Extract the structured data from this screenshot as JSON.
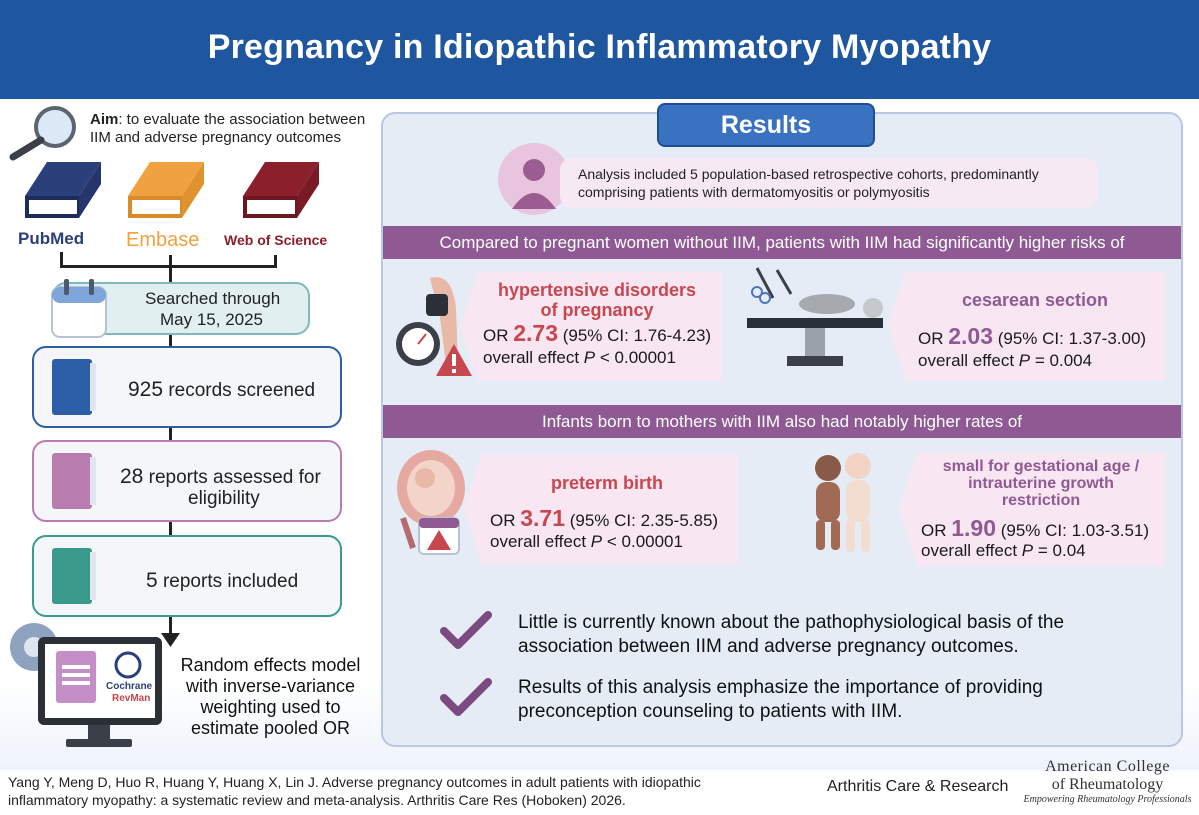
{
  "header": {
    "title": "Pregnancy in Idiopathic Inflammatory Myopathy"
  },
  "aim": {
    "label": "Aim",
    "text": ": to evaluate the association between IIM and adverse pregnancy outcomes"
  },
  "databases": [
    {
      "name": "PubMed",
      "color": "#2b3f7a"
    },
    {
      "name": "Embase",
      "color": "#f0a140"
    },
    {
      "name": "Web of Science",
      "color": "#8b1f2b"
    }
  ],
  "flow": {
    "search_line1": "Searched through",
    "search_line2": "May 15, 2025",
    "screened_count": "925",
    "screened_label": " records screened",
    "assessed_count": "28",
    "assessed_label": " reports assessed for",
    "assessed_label2": "eligibility",
    "included_count": "5",
    "included_label": " reports included",
    "model_line1": "Random effects model",
    "model_line2": "with inverse-variance",
    "model_line3": "weighting used to",
    "model_line4": "estimate pooled OR",
    "software_line1": "Cochrane",
    "software_line2": "RevMan"
  },
  "results": {
    "badge": "Results",
    "analysis_line1": "Analysis included 5 population-based retrospective cohorts, predominantly",
    "analysis_line2": "comprising patients with dermatomyositis or polymyositis",
    "band1": "Compared to pregnant women without IIM, patients with IIM had significantly higher risks of",
    "band2": "Infants born to mothers with IIM also had notably higher rates of",
    "outcomes": [
      {
        "title_line1": "hypertensive disorders",
        "title_line2": "of pregnancy",
        "or_label": "OR ",
        "or_value": "2.73",
        "ci": " (95% CI: 1.76-4.23)",
        "effect_label": "overall effect ",
        "p_symbol": "P",
        "p_value": " < 0.00001",
        "color": "#c8474f"
      },
      {
        "title_line1": "cesarean section",
        "or_label": "OR ",
        "or_value": "2.03",
        "ci": " (95% CI: 1.37-3.00)",
        "effect_label": "overall effect ",
        "p_symbol": "P",
        "p_value": " = 0.004",
        "color": "#8f5a94"
      },
      {
        "title_line1": "preterm birth",
        "or_label": "OR ",
        "or_value": "3.71",
        "ci": " (95% CI: 2.35-5.85)",
        "effect_label": "overall effect ",
        "p_symbol": "P",
        "p_value": " < 0.00001",
        "color": "#c8474f"
      },
      {
        "title_line1": "small for gestational age /",
        "title_line2": "intrauterine growth",
        "title_line3": "restriction",
        "or_label": "OR ",
        "or_value": "1.90",
        "ci": " (95% CI: 1.03-3.51)",
        "effect_label": "overall effect ",
        "p_symbol": "P",
        "p_value": " = 0.04",
        "color": "#8f5a94"
      }
    ],
    "conclusions": [
      {
        "line1": "Little is currently known about the pathophysiological basis of the",
        "line2": "association between IIM and adverse pregnancy outcomes."
      },
      {
        "line1": "Results of this analysis emphasize the importance of providing",
        "line2": "preconception counseling to patients with IIM."
      }
    ]
  },
  "footer": {
    "citation_line1": "Yang Y, Meng D, Huo R, Huang Y, Huang X, Lin J. Adverse pregnancy outcomes in adult patients with idiopathic",
    "citation_line2": "inflammatory myopathy: a systematic review and meta-analysis. Arthritis Care Res (Hoboken) 2026.",
    "journal": "Arthritis Care & Research",
    "logo_line1": "American College",
    "logo_line2": "of Rheumatology",
    "logo_line3": "Empowering Rheumatology Professionals"
  }
}
